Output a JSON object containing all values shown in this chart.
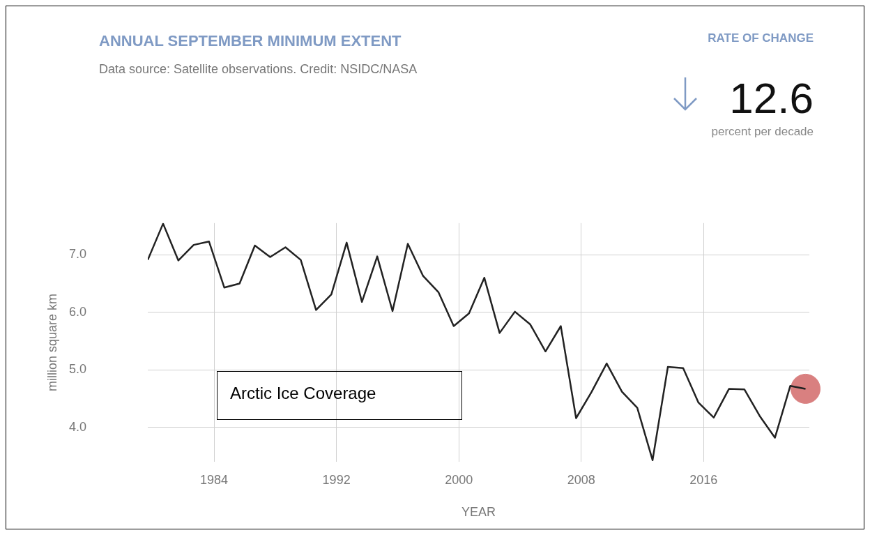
{
  "chart_data": {
    "type": "line",
    "title": "ANNUAL SEPTEMBER MINIMUM EXTENT",
    "subtitle": "Data source: Satellite observations. Credit: NSIDC/NASA",
    "xlabel": "YEAR",
    "ylabel": "million square km",
    "annotations": [
      "RATE OF CHANGE",
      "12.6",
      "percent per decade",
      "Arctic Ice Coverage"
    ],
    "series": [
      {
        "color": "#222222",
        "marker": "none",
        "line_style": "solid",
        "x": [
          "1979-09",
          "1980-09",
          "1981-09",
          "1982-09",
          "1983-09",
          "1984-09",
          "1985-09",
          "1986-09",
          "1987-09",
          "1988-09",
          "1989-09",
          "1990-09",
          "1991-09",
          "1992-09",
          "1993-09",
          "1994-09",
          "1995-09",
          "1996-09",
          "1997-09",
          "1998-09",
          "1999-09",
          "2000-09",
          "2001-09",
          "2002-09",
          "2003-09",
          "2004-09",
          "2005-09",
          "2006-09",
          "2007-09",
          "2008-09",
          "2009-09",
          "2010-09",
          "2011-09",
          "2012-09",
          "2013-09",
          "2014-09",
          "2015-09",
          "2016-09",
          "2017-09",
          "2018-09",
          "2019-09",
          "2020-09",
          "2021-09",
          "2022-09"
        ],
        "values": [
          6.91,
          7.54,
          6.9,
          7.17,
          7.23,
          6.43,
          6.5,
          7.16,
          6.96,
          7.13,
          6.91,
          6.04,
          6.31,
          7.21,
          6.18,
          6.97,
          6.02,
          7.19,
          6.63,
          6.35,
          5.76,
          5.98,
          6.6,
          5.64,
          6.01,
          5.79,
          5.32,
          5.76,
          4.16,
          4.61,
          5.11,
          4.62,
          4.34,
          3.43,
          5.05,
          5.03,
          4.43,
          4.17,
          4.67,
          4.66,
          4.2,
          3.82,
          4.72,
          4.67
        ]
      },
      {
        "type": "scatter",
        "color": "#d98080",
        "marker": "circle",
        "x": [
          "2022-09"
        ],
        "values": [
          4.67
        ]
      }
    ],
    "xlim": [
      "1979-09",
      "2022-12"
    ],
    "xticks": [
      "1984",
      "1992",
      "2000",
      "2008",
      "2016"
    ],
    "ylim": [
      3.4,
      7.55
    ],
    "yticks": [
      {
        "value": 4,
        "label": "4.0"
      },
      {
        "value": 5,
        "label": "5.0"
      },
      {
        "value": 6,
        "label": "6.0"
      },
      {
        "value": 7,
        "label": "7.0"
      }
    ],
    "grid": true,
    "legend": false
  }
}
